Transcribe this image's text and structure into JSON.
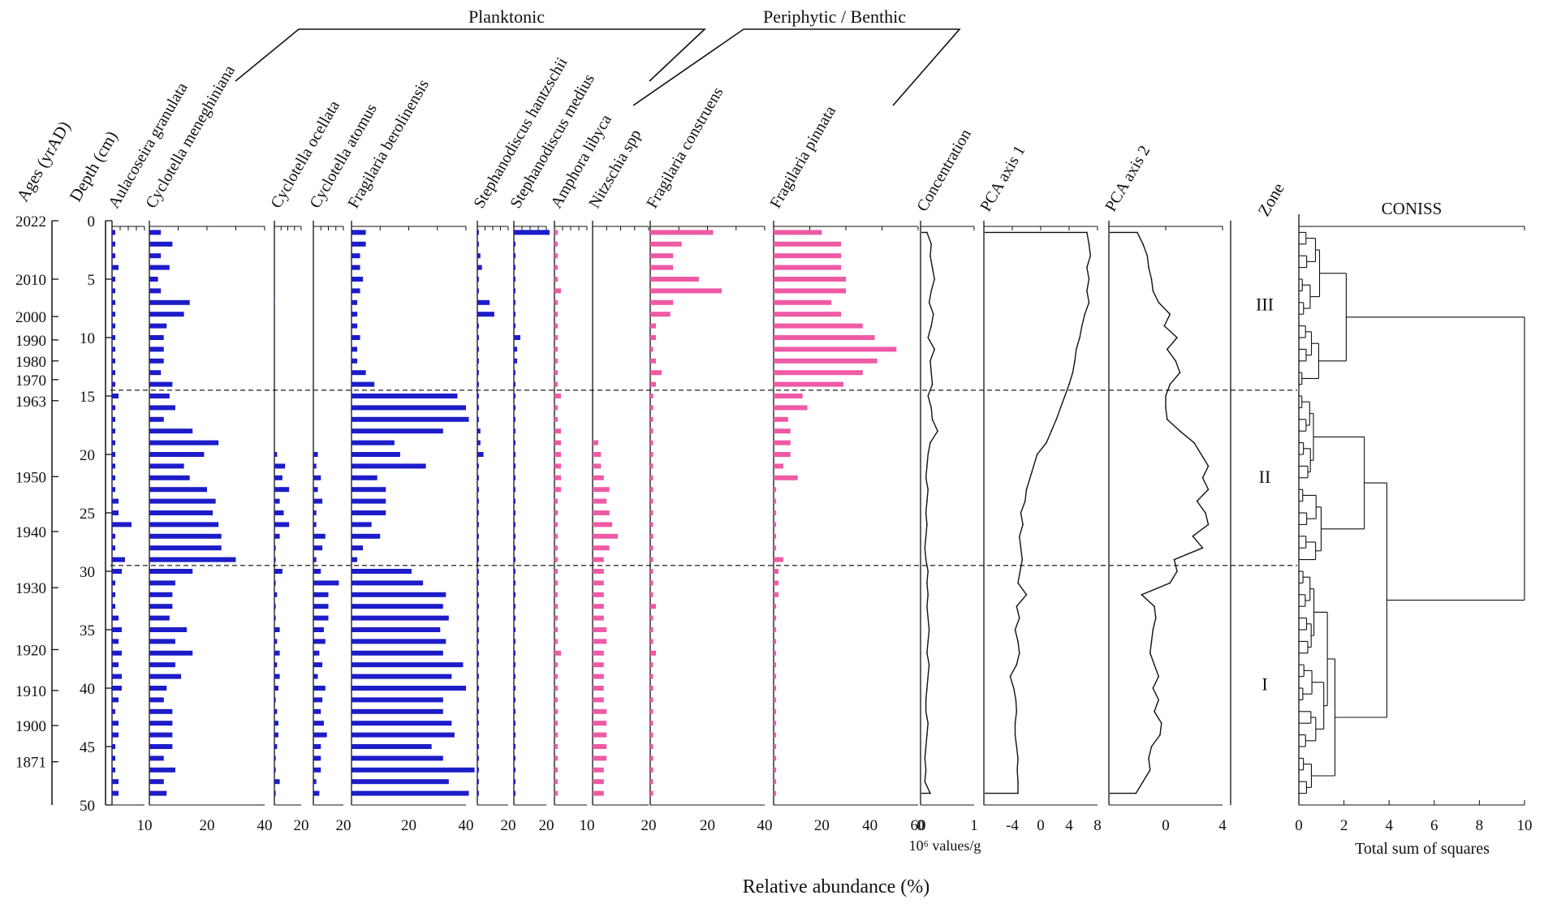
{
  "figure": {
    "x_caption": "Relative abundance (%)",
    "group_planktonic": "Planktonic",
    "group_periphytic": "Periphytic / Benthic",
    "ages_label": "Ages (yrAD)",
    "depth_label": "Depth (cm)",
    "zone_label": "Zone",
    "concentration_unit": "10⁶ values/g",
    "coniss_xlabel": "Total sum of squares"
  },
  "colors": {
    "planktonic": "#1c1cc8",
    "periphytic": "#ee5aa6",
    "line": "#111111"
  },
  "chart_data": {
    "type": "bar",
    "orientation": "horizontal",
    "description": "Diatom stratigraphic diagram",
    "depth_range": [
      0,
      50
    ],
    "depth_ticks": [
      0,
      5,
      10,
      15,
      20,
      25,
      30,
      35,
      40,
      45,
      50
    ],
    "sample_depths": [
      1,
      2,
      3,
      4,
      5,
      6,
      7,
      8,
      9,
      10,
      11,
      12,
      13,
      14,
      15,
      16,
      17,
      18,
      19,
      20,
      21,
      22,
      23,
      24,
      25,
      26,
      27,
      28,
      29,
      30,
      31,
      32,
      33,
      34,
      35,
      36,
      37,
      38,
      39,
      40,
      41,
      42,
      43,
      44,
      45,
      46,
      47,
      48,
      49
    ],
    "ages": [
      {
        "age": "2022",
        "depth": 0
      },
      {
        "age": "2010",
        "depth": 5
      },
      {
        "age": "2000",
        "depth": 8.2
      },
      {
        "age": "1990",
        "depth": 10.2
      },
      {
        "age": "1980",
        "depth": 12
      },
      {
        "age": "1970",
        "depth": 13.6
      },
      {
        "age": "1963",
        "depth": 15.4
      },
      {
        "age": "1950",
        "depth": 21.9
      },
      {
        "age": "1940",
        "depth": 26.6
      },
      {
        "age": "1930",
        "depth": 31.4
      },
      {
        "age": "1920",
        "depth": 36.7
      },
      {
        "age": "1910",
        "depth": 40.2
      },
      {
        "age": "1900",
        "depth": 43.2
      },
      {
        "age": "1871",
        "depth": 46.3
      }
    ],
    "taxa": [
      {
        "name": "Aulacoseira granulata",
        "group": "planktonic",
        "xmax": 10,
        "ticks": [
          "10"
        ],
        "values": [
          1,
          1,
          1,
          2,
          1,
          1,
          1,
          1,
          1,
          1,
          1,
          1,
          1,
          1,
          2,
          1,
          1,
          1,
          1,
          1,
          1,
          1,
          1,
          2,
          2,
          6,
          1,
          1,
          4,
          3,
          1,
          1,
          1,
          2,
          3,
          2,
          3,
          2,
          3,
          3,
          2,
          1,
          2,
          2,
          1,
          1,
          1,
          2,
          2
        ]
      },
      {
        "name": "Cyclotella meneghiniana",
        "group": "planktonic",
        "xmax": 40,
        "ticks": [
          "20",
          "40"
        ],
        "values": [
          4,
          8,
          4,
          7,
          3,
          4,
          14,
          12,
          6,
          5,
          5,
          5,
          4,
          8,
          7,
          9,
          5,
          15,
          24,
          19,
          12,
          14,
          20,
          23,
          22,
          24,
          25,
          25,
          30,
          15,
          9,
          8,
          8,
          7,
          13,
          9,
          15,
          9,
          11,
          6,
          5,
          8,
          8,
          8,
          8,
          5,
          9,
          5,
          6
        ]
      },
      {
        "name": "Cyclotella ocellata",
        "group": "planktonic",
        "xmax": 20,
        "ticks": [
          "20"
        ],
        "values": [
          0,
          0,
          0,
          0,
          0,
          0,
          0.3,
          0,
          0,
          0,
          0,
          0,
          0,
          0,
          0,
          0,
          0,
          0,
          0,
          2,
          8,
          6,
          11,
          4,
          7,
          11,
          4,
          1,
          1,
          6,
          1,
          2,
          1,
          1,
          4,
          2,
          4,
          2,
          4,
          3,
          1,
          2,
          3,
          3,
          2,
          1,
          1,
          4,
          1
        ]
      },
      {
        "name": "Cyclotella atomus",
        "group": "planktonic",
        "xmax": 20,
        "ticks": [
          "20"
        ],
        "values": [
          0,
          0,
          0,
          0,
          0,
          0,
          0,
          0,
          0,
          0,
          0,
          0,
          0,
          0,
          0,
          0,
          0,
          0,
          0,
          3,
          2,
          5,
          3,
          6,
          2,
          2,
          8,
          6,
          2,
          5,
          17,
          10,
          10,
          10,
          7,
          8,
          4,
          6,
          3,
          8,
          6,
          5,
          7,
          9,
          5,
          5,
          5,
          2,
          4
        ]
      },
      {
        "name": "Fragilaria berolinensis",
        "group": "planktonic",
        "xmax": 40,
        "ticks": [
          "20",
          "40"
        ],
        "values": [
          5,
          5,
          3,
          3,
          4,
          3,
          2,
          2,
          2,
          3,
          2,
          2,
          5,
          8,
          37,
          40,
          41,
          32,
          15,
          17,
          26,
          9,
          12,
          12,
          12,
          7,
          10,
          4,
          2,
          21,
          25,
          33,
          32,
          34,
          31,
          33,
          32,
          39,
          35,
          40,
          32,
          32,
          35,
          36,
          28,
          32,
          43,
          34,
          41
        ]
      },
      {
        "name": "Stephanodiscus hantzschii",
        "group": "planktonic",
        "xmax": 20,
        "ticks": [
          "20"
        ],
        "values": [
          1,
          1,
          2,
          3,
          1,
          1,
          8,
          11,
          1,
          1,
          1,
          1,
          1,
          1,
          1,
          1,
          1,
          2,
          2,
          4,
          1,
          1,
          1,
          1,
          1,
          1,
          1,
          1,
          1,
          1,
          1,
          1,
          1,
          1,
          1,
          1,
          1,
          1,
          1,
          1,
          1,
          1,
          1,
          1,
          1,
          1,
          1,
          1,
          1
        ]
      },
      {
        "name": "Stephanodiscus medius",
        "group": "planktonic",
        "xmax": 20,
        "ticks": [
          "20"
        ],
        "values": [
          22,
          1,
          1,
          1,
          1,
          1,
          1,
          1,
          1,
          4,
          2,
          2,
          1,
          1,
          1,
          1,
          1,
          1,
          1,
          1,
          1,
          1,
          1,
          1,
          1,
          1,
          1,
          1,
          1,
          1,
          1,
          1,
          1,
          1,
          1,
          1,
          1,
          1,
          1,
          1,
          1,
          1,
          1,
          1,
          1,
          1,
          1,
          1,
          1
        ]
      },
      {
        "name": "Amphora libyca",
        "group": "periphytic",
        "xmax": 10,
        "ticks": [
          "10"
        ],
        "values": [
          1,
          1,
          1,
          1,
          1,
          2,
          1,
          1,
          1,
          1,
          1,
          1,
          1,
          1,
          2,
          1,
          1,
          2,
          2,
          2,
          2,
          2,
          2,
          1,
          1,
          1,
          1,
          1,
          1,
          1,
          1,
          1,
          1,
          1,
          1,
          1,
          2,
          1,
          1,
          1,
          1,
          1,
          1,
          1,
          1,
          1,
          1,
          1,
          1
        ]
      },
      {
        "name": "Nitzschia spp",
        "group": "periphytic",
        "xmax": 20,
        "ticks": [
          "20"
        ],
        "values": [
          0,
          0,
          0,
          0,
          0,
          0,
          0,
          0,
          0,
          0,
          0,
          0,
          0,
          0,
          0,
          0,
          0,
          0,
          2,
          3,
          3,
          4,
          6,
          5,
          6,
          7,
          9,
          6,
          4,
          4,
          4,
          4,
          4,
          4,
          5,
          5,
          4,
          4,
          4,
          4,
          4,
          5,
          5,
          5,
          5,
          5,
          4,
          4,
          4
        ]
      },
      {
        "name": "Fragilaria construens",
        "group": "periphytic",
        "xmax": 40,
        "ticks": [
          "20",
          "40"
        ],
        "values": [
          22,
          11,
          8,
          8,
          17,
          25,
          8,
          7,
          2,
          2,
          1,
          2,
          4,
          2,
          1,
          1,
          1,
          1,
          1,
          1,
          1,
          1,
          1,
          1,
          1,
          1,
          1,
          1,
          1,
          1,
          1,
          1,
          2,
          1,
          1,
          1,
          2,
          1,
          1,
          1,
          1,
          1,
          1,
          1,
          1,
          1,
          1,
          1,
          1
        ]
      },
      {
        "name": "Fragilaria pinnata",
        "group": "periphytic",
        "xmax": 60,
        "ticks": [
          "20",
          "40",
          "60"
        ],
        "values": [
          20,
          28,
          28,
          28,
          30,
          30,
          24,
          28,
          37,
          42,
          51,
          43,
          37,
          29,
          12,
          14,
          6,
          7,
          7,
          7,
          4,
          10,
          1,
          1,
          1,
          1,
          1,
          1,
          4,
          2,
          2,
          2,
          1,
          1,
          1,
          1,
          1,
          1,
          1,
          1,
          1,
          1,
          1,
          1,
          1,
          1,
          1,
          1,
          1
        ]
      }
    ],
    "concentration": {
      "name": "Concentration",
      "xlim": [
        0,
        1
      ],
      "ticks": [
        "0",
        "1"
      ],
      "values": [
        0.12,
        0.2,
        0.18,
        0.22,
        0.26,
        0.2,
        0.16,
        0.24,
        0.2,
        0.14,
        0.26,
        0.18,
        0.2,
        0.22,
        0.14,
        0.2,
        0.22,
        0.32,
        0.18,
        0.14,
        0.12,
        0.1,
        0.14,
        0.12,
        0.1,
        0.12,
        0.1,
        0.08,
        0.1,
        0.14,
        0.12,
        0.14,
        0.12,
        0.14,
        0.16,
        0.14,
        0.12,
        0.16,
        0.14,
        0.12,
        0.1,
        0.1,
        0.14,
        0.12,
        0.1,
        0.08,
        0.1,
        0.08,
        0.18
      ]
    },
    "pca1": {
      "name": "PCA axis 1",
      "xlim": [
        -8,
        8
      ],
      "ticks": [
        "-4",
        "0",
        "4",
        "8"
      ],
      "values": [
        6.5,
        6.8,
        7,
        6.5,
        6.8,
        6.5,
        6.8,
        6.2,
        5.8,
        5.5,
        5,
        4.8,
        4.5,
        4,
        3.4,
        2.8,
        2.2,
        1.5,
        0.8,
        -0.5,
        -1,
        -1.5,
        -2,
        -2.2,
        -2.8,
        -2.5,
        -3,
        -2.8,
        -2.6,
        -2.9,
        -3.2,
        -2,
        -3.4,
        -3,
        -3.6,
        -3.2,
        -3,
        -3.4,
        -4.3,
        -3.8,
        -3.5,
        -3.4,
        -3.6,
        -3.6,
        -3.4,
        -3.2,
        -3.3,
        -3.2,
        -3.2
      ]
    },
    "pca2": {
      "name": "PCA axis 2",
      "xlim": [
        -4,
        4
      ],
      "ticks": [
        "0",
        "4"
      ],
      "values": [
        -2,
        -1.6,
        -1.3,
        -1.2,
        -1,
        -0.9,
        -0.5,
        0.3,
        -0.1,
        0.8,
        0.1,
        0.7,
        1,
        0.3,
        0,
        0,
        0.1,
        1,
        2,
        2.5,
        3,
        2.6,
        3,
        2.2,
        2.8,
        3,
        1.9,
        2.6,
        0.6,
        0.8,
        0.3,
        -1.7,
        -0.8,
        -0.7,
        -0.9,
        -1,
        -1.1,
        -0.8,
        -0.5,
        -0.9,
        -0.5,
        -0.8,
        -0.3,
        -0.4,
        -1,
        -1.2,
        -1.1,
        -1.6,
        -2.1
      ]
    },
    "zones": [
      {
        "label": "III",
        "top": 0,
        "bottom": 14.5
      },
      {
        "label": "II",
        "top": 14.5,
        "bottom": 29.5
      },
      {
        "label": "I",
        "top": 29.5,
        "bottom": 50
      }
    ],
    "zone_boundaries": [
      14.5,
      29.5
    ],
    "coniss": {
      "title": "CONISS",
      "xlim": [
        0,
        10
      ],
      "ticks": [
        "0",
        "2",
        "4",
        "6",
        "8",
        "10"
      ],
      "main_merges": [
        {
          "clusters": "III",
          "dissimilarity": 2.1
        },
        {
          "clusters": "I+II",
          "dissimilarity": 3.9
        },
        {
          "clusters": "all",
          "dissimilarity": 10
        }
      ]
    }
  }
}
